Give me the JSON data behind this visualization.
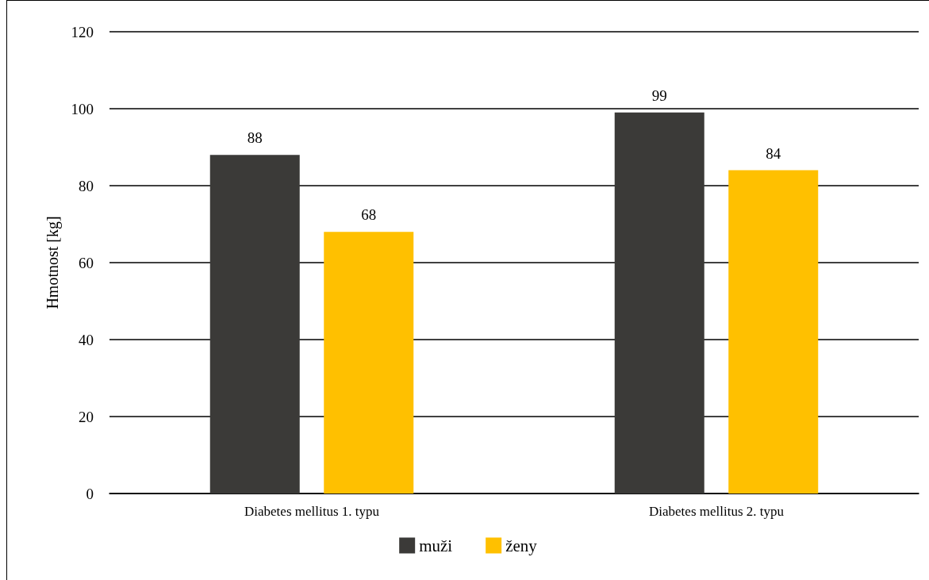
{
  "chart_data": {
    "type": "bar",
    "ylabel": "Hmotnost [kg]",
    "categories": [
      "Diabetes mellitus 1. typu",
      "Diabetes mellitus 2. typu"
    ],
    "series": [
      {
        "name": "muži",
        "color": "#3b3a38",
        "values": [
          88,
          99
        ]
      },
      {
        "name": "ženy",
        "color": "#ffc000",
        "values": [
          68,
          84
        ]
      }
    ],
    "ylim": [
      0,
      120
    ],
    "yticks": [
      0,
      20,
      40,
      60,
      80,
      100,
      120
    ],
    "grid": "y",
    "legend": "bottom",
    "data_labels": true
  }
}
